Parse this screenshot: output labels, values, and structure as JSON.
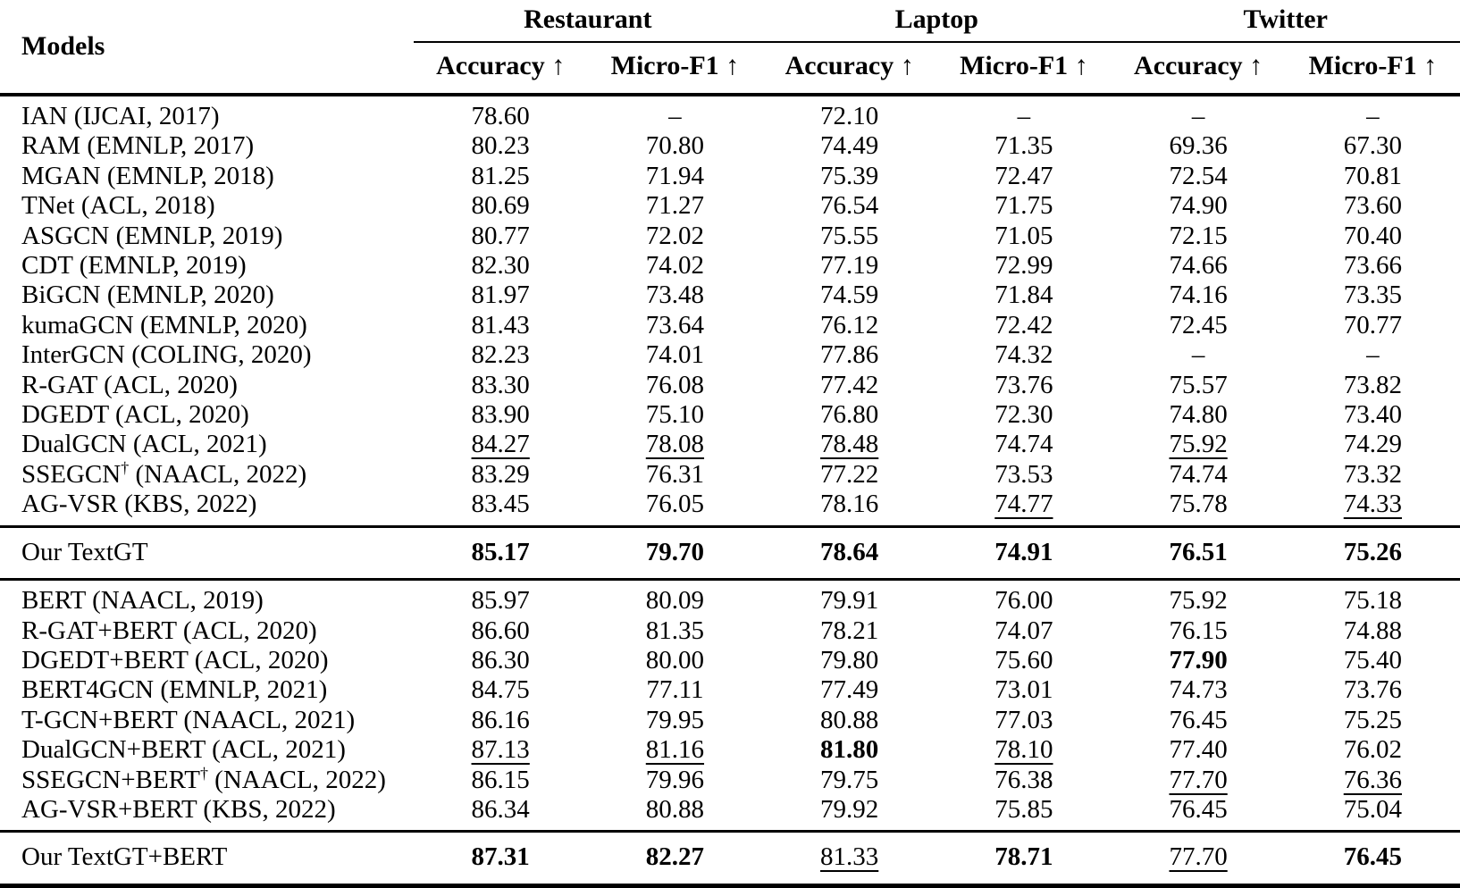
{
  "table": {
    "models_header": "Models",
    "groups": [
      {
        "label": "Restaurant"
      },
      {
        "label": "Laptop"
      },
      {
        "label": "Twitter"
      }
    ],
    "metrics": [
      "Accuracy ↑",
      "Micro-F1 ↑",
      "Accuracy ↑",
      "Micro-F1 ↑",
      "Accuracy ↑",
      "Micro-F1 ↑"
    ],
    "style_legend": {
      "n": "normal",
      "b": "bold-best",
      "u": "underline-second-best"
    },
    "sections": [
      {
        "name": "baselines",
        "rows": [
          {
            "model": {
              "name": "IAN",
              "sup": "",
              "tail": " (IJCAI, 2017)"
            },
            "cells": [
              {
                "v": "78.60",
                "s": "n"
              },
              {
                "v": "–",
                "s": "n"
              },
              {
                "v": "72.10",
                "s": "n"
              },
              {
                "v": "–",
                "s": "n"
              },
              {
                "v": "–",
                "s": "n"
              },
              {
                "v": "–",
                "s": "n"
              }
            ]
          },
          {
            "model": {
              "name": "RAM",
              "sup": "",
              "tail": " (EMNLP, 2017)"
            },
            "cells": [
              {
                "v": "80.23",
                "s": "n"
              },
              {
                "v": "70.80",
                "s": "n"
              },
              {
                "v": "74.49",
                "s": "n"
              },
              {
                "v": "71.35",
                "s": "n"
              },
              {
                "v": "69.36",
                "s": "n"
              },
              {
                "v": "67.30",
                "s": "n"
              }
            ]
          },
          {
            "model": {
              "name": "MGAN",
              "sup": "",
              "tail": " (EMNLP, 2018)"
            },
            "cells": [
              {
                "v": "81.25",
                "s": "n"
              },
              {
                "v": "71.94",
                "s": "n"
              },
              {
                "v": "75.39",
                "s": "n"
              },
              {
                "v": "72.47",
                "s": "n"
              },
              {
                "v": "72.54",
                "s": "n"
              },
              {
                "v": "70.81",
                "s": "n"
              }
            ]
          },
          {
            "model": {
              "name": "TNet",
              "sup": "",
              "tail": " (ACL, 2018)"
            },
            "cells": [
              {
                "v": "80.69",
                "s": "n"
              },
              {
                "v": "71.27",
                "s": "n"
              },
              {
                "v": "76.54",
                "s": "n"
              },
              {
                "v": "71.75",
                "s": "n"
              },
              {
                "v": "74.90",
                "s": "n"
              },
              {
                "v": "73.60",
                "s": "n"
              }
            ]
          },
          {
            "model": {
              "name": "ASGCN",
              "sup": "",
              "tail": " (EMNLP, 2019)"
            },
            "cells": [
              {
                "v": "80.77",
                "s": "n"
              },
              {
                "v": "72.02",
                "s": "n"
              },
              {
                "v": "75.55",
                "s": "n"
              },
              {
                "v": "71.05",
                "s": "n"
              },
              {
                "v": "72.15",
                "s": "n"
              },
              {
                "v": "70.40",
                "s": "n"
              }
            ]
          },
          {
            "model": {
              "name": "CDT",
              "sup": "",
              "tail": " (EMNLP, 2019)"
            },
            "cells": [
              {
                "v": "82.30",
                "s": "n"
              },
              {
                "v": "74.02",
                "s": "n"
              },
              {
                "v": "77.19",
                "s": "n"
              },
              {
                "v": "72.99",
                "s": "n"
              },
              {
                "v": "74.66",
                "s": "n"
              },
              {
                "v": "73.66",
                "s": "n"
              }
            ]
          },
          {
            "model": {
              "name": "BiGCN",
              "sup": "",
              "tail": " (EMNLP, 2020)"
            },
            "cells": [
              {
                "v": "81.97",
                "s": "n"
              },
              {
                "v": "73.48",
                "s": "n"
              },
              {
                "v": "74.59",
                "s": "n"
              },
              {
                "v": "71.84",
                "s": "n"
              },
              {
                "v": "74.16",
                "s": "n"
              },
              {
                "v": "73.35",
                "s": "n"
              }
            ]
          },
          {
            "model": {
              "name": "kumaGCN",
              "sup": "",
              "tail": " (EMNLP, 2020)"
            },
            "cells": [
              {
                "v": "81.43",
                "s": "n"
              },
              {
                "v": "73.64",
                "s": "n"
              },
              {
                "v": "76.12",
                "s": "n"
              },
              {
                "v": "72.42",
                "s": "n"
              },
              {
                "v": "72.45",
                "s": "n"
              },
              {
                "v": "70.77",
                "s": "n"
              }
            ]
          },
          {
            "model": {
              "name": "InterGCN",
              "sup": "",
              "tail": " (COLING, 2020)"
            },
            "cells": [
              {
                "v": "82.23",
                "s": "n"
              },
              {
                "v": "74.01",
                "s": "n"
              },
              {
                "v": "77.86",
                "s": "n"
              },
              {
                "v": "74.32",
                "s": "n"
              },
              {
                "v": "–",
                "s": "n"
              },
              {
                "v": "–",
                "s": "n"
              }
            ]
          },
          {
            "model": {
              "name": "R-GAT",
              "sup": "",
              "tail": " (ACL, 2020)"
            },
            "cells": [
              {
                "v": "83.30",
                "s": "n"
              },
              {
                "v": "76.08",
                "s": "n"
              },
              {
                "v": "77.42",
                "s": "n"
              },
              {
                "v": "73.76",
                "s": "n"
              },
              {
                "v": "75.57",
                "s": "n"
              },
              {
                "v": "73.82",
                "s": "n"
              }
            ]
          },
          {
            "model": {
              "name": "DGEDT",
              "sup": "",
              "tail": " (ACL, 2020)"
            },
            "cells": [
              {
                "v": "83.90",
                "s": "n"
              },
              {
                "v": "75.10",
                "s": "n"
              },
              {
                "v": "76.80",
                "s": "n"
              },
              {
                "v": "72.30",
                "s": "n"
              },
              {
                "v": "74.80",
                "s": "n"
              },
              {
                "v": "73.40",
                "s": "n"
              }
            ]
          },
          {
            "model": {
              "name": "DualGCN",
              "sup": "",
              "tail": " (ACL, 2021)"
            },
            "cells": [
              {
                "v": "84.27",
                "s": "u"
              },
              {
                "v": "78.08",
                "s": "u"
              },
              {
                "v": "78.48",
                "s": "u"
              },
              {
                "v": "74.74",
                "s": "n"
              },
              {
                "v": "75.92",
                "s": "u"
              },
              {
                "v": "74.29",
                "s": "n"
              }
            ]
          },
          {
            "model": {
              "name": "SSEGCN",
              "sup": "†",
              "tail": " (NAACL, 2022)"
            },
            "cells": [
              {
                "v": "83.29",
                "s": "n"
              },
              {
                "v": "76.31",
                "s": "n"
              },
              {
                "v": "77.22",
                "s": "n"
              },
              {
                "v": "73.53",
                "s": "n"
              },
              {
                "v": "74.74",
                "s": "n"
              },
              {
                "v": "73.32",
                "s": "n"
              }
            ]
          },
          {
            "model": {
              "name": "AG-VSR",
              "sup": "",
              "tail": " (KBS, 2022)"
            },
            "cells": [
              {
                "v": "83.45",
                "s": "n"
              },
              {
                "v": "76.05",
                "s": "n"
              },
              {
                "v": "78.16",
                "s": "n"
              },
              {
                "v": "74.77",
                "s": "u"
              },
              {
                "v": "75.78",
                "s": "n"
              },
              {
                "v": "74.33",
                "s": "u"
              }
            ]
          }
        ]
      },
      {
        "name": "ours",
        "rows": [
          {
            "model": {
              "name": "Our TextGT",
              "sup": "",
              "tail": ""
            },
            "cells": [
              {
                "v": "85.17",
                "s": "b"
              },
              {
                "v": "79.70",
                "s": "b"
              },
              {
                "v": "78.64",
                "s": "b"
              },
              {
                "v": "74.91",
                "s": "b"
              },
              {
                "v": "76.51",
                "s": "b"
              },
              {
                "v": "75.26",
                "s": "b"
              }
            ]
          }
        ]
      },
      {
        "name": "bert-baselines",
        "rows": [
          {
            "model": {
              "name": "BERT",
              "sup": "",
              "tail": " (NAACL, 2019)"
            },
            "cells": [
              {
                "v": "85.97",
                "s": "n"
              },
              {
                "v": "80.09",
                "s": "n"
              },
              {
                "v": "79.91",
                "s": "n"
              },
              {
                "v": "76.00",
                "s": "n"
              },
              {
                "v": "75.92",
                "s": "n"
              },
              {
                "v": "75.18",
                "s": "n"
              }
            ]
          },
          {
            "model": {
              "name": "R-GAT+BERT",
              "sup": "",
              "tail": " (ACL, 2020)"
            },
            "cells": [
              {
                "v": "86.60",
                "s": "n"
              },
              {
                "v": "81.35",
                "s": "n"
              },
              {
                "v": "78.21",
                "s": "n"
              },
              {
                "v": "74.07",
                "s": "n"
              },
              {
                "v": "76.15",
                "s": "n"
              },
              {
                "v": "74.88",
                "s": "n"
              }
            ]
          },
          {
            "model": {
              "name": "DGEDT+BERT",
              "sup": "",
              "tail": " (ACL, 2020)"
            },
            "cells": [
              {
                "v": "86.30",
                "s": "n"
              },
              {
                "v": "80.00",
                "s": "n"
              },
              {
                "v": "79.80",
                "s": "n"
              },
              {
                "v": "75.60",
                "s": "n"
              },
              {
                "v": "77.90",
                "s": "b"
              },
              {
                "v": "75.40",
                "s": "n"
              }
            ]
          },
          {
            "model": {
              "name": "BERT4GCN",
              "sup": "",
              "tail": " (EMNLP, 2021)"
            },
            "cells": [
              {
                "v": "84.75",
                "s": "n"
              },
              {
                "v": "77.11",
                "s": "n"
              },
              {
                "v": "77.49",
                "s": "n"
              },
              {
                "v": "73.01",
                "s": "n"
              },
              {
                "v": "74.73",
                "s": "n"
              },
              {
                "v": "73.76",
                "s": "n"
              }
            ]
          },
          {
            "model": {
              "name": "T-GCN+BERT",
              "sup": "",
              "tail": " (NAACL, 2021)"
            },
            "cells": [
              {
                "v": "86.16",
                "s": "n"
              },
              {
                "v": "79.95",
                "s": "n"
              },
              {
                "v": "80.88",
                "s": "n"
              },
              {
                "v": "77.03",
                "s": "n"
              },
              {
                "v": "76.45",
                "s": "n"
              },
              {
                "v": "75.25",
                "s": "n"
              }
            ]
          },
          {
            "model": {
              "name": "DualGCN+BERT",
              "sup": "",
              "tail": " (ACL, 2021)"
            },
            "cells": [
              {
                "v": "87.13",
                "s": "u"
              },
              {
                "v": "81.16",
                "s": "u"
              },
              {
                "v": "81.80",
                "s": "b"
              },
              {
                "v": "78.10",
                "s": "u"
              },
              {
                "v": "77.40",
                "s": "n"
              },
              {
                "v": "76.02",
                "s": "n"
              }
            ]
          },
          {
            "model": {
              "name": "SSEGCN+BERT",
              "sup": "†",
              "tail": " (NAACL, 2022)"
            },
            "cells": [
              {
                "v": "86.15",
                "s": "n"
              },
              {
                "v": "79.96",
                "s": "n"
              },
              {
                "v": "79.75",
                "s": "n"
              },
              {
                "v": "76.38",
                "s": "n"
              },
              {
                "v": "77.70",
                "s": "u"
              },
              {
                "v": "76.36",
                "s": "u"
              }
            ]
          },
          {
            "model": {
              "name": "AG-VSR+BERT",
              "sup": "",
              "tail": " (KBS, 2022)"
            },
            "cells": [
              {
                "v": "86.34",
                "s": "n"
              },
              {
                "v": "80.88",
                "s": "n"
              },
              {
                "v": "79.92",
                "s": "n"
              },
              {
                "v": "75.85",
                "s": "n"
              },
              {
                "v": "76.45",
                "s": "n"
              },
              {
                "v": "75.04",
                "s": "n"
              }
            ]
          }
        ]
      },
      {
        "name": "ours-bert",
        "rows": [
          {
            "model": {
              "name": "Our TextGT+BERT",
              "sup": "",
              "tail": ""
            },
            "cells": [
              {
                "v": "87.31",
                "s": "b"
              },
              {
                "v": "82.27",
                "s": "b"
              },
              {
                "v": "81.33",
                "s": "u"
              },
              {
                "v": "78.71",
                "s": "b"
              },
              {
                "v": "77.70",
                "s": "u"
              },
              {
                "v": "76.45",
                "s": "b"
              }
            ]
          }
        ]
      }
    ]
  }
}
